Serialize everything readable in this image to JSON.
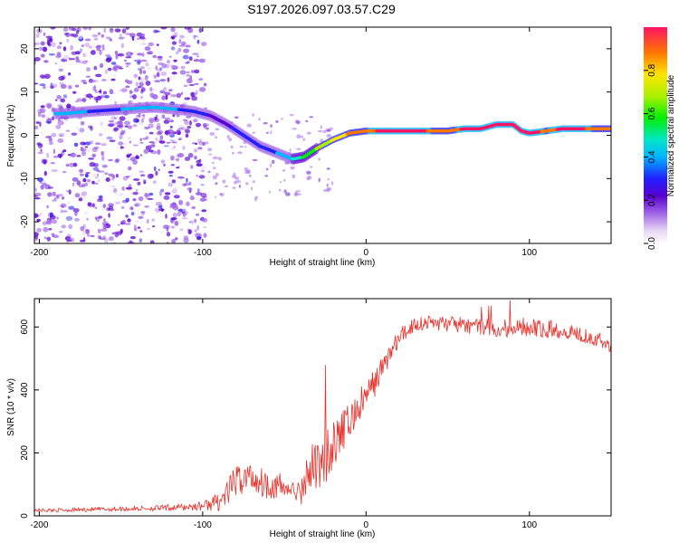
{
  "title": "S197.2026.097.03.57.C29",
  "chart_data": [
    {
      "type": "heatmap",
      "name": "spectrogram",
      "xlabel": "Height of straight line (km)",
      "ylabel": "Frequency (Hz)",
      "xlim": [
        -203,
        150
      ],
      "ylim": [
        -25,
        25
      ],
      "xticks": [
        -200,
        -100,
        0,
        100
      ],
      "xtick_labels": [
        "-200",
        "-100",
        "0",
        "100"
      ],
      "yticks": [
        -20,
        -10,
        0,
        10,
        20
      ],
      "ytick_labels": [
        "-20",
        "-10",
        "0",
        "10",
        "20"
      ],
      "ridge": {
        "x": [
          -185,
          -170,
          -150,
          -130,
          -115,
          -105,
          -95,
          -85,
          -75,
          -65,
          -55,
          -45,
          -38,
          -30,
          -20,
          -10,
          0,
          10,
          20,
          30,
          40,
          50,
          60,
          70,
          80,
          85,
          90,
          95,
          100,
          110,
          120,
          130,
          140,
          150
        ],
        "freq": [
          5,
          5.5,
          6,
          6.5,
          6,
          5.5,
          4.5,
          2.5,
          0,
          -2.5,
          -4,
          -5.5,
          -5,
          -3,
          -1,
          0.5,
          1,
          1,
          1,
          1,
          1,
          1,
          1.5,
          1.5,
          2.5,
          2.5,
          2.5,
          1,
          0.5,
          1,
          1.5,
          1.5,
          1.5,
          1.5
        ],
        "amplitude": [
          0.4,
          0.3,
          0.3,
          0.4,
          0.3,
          0.3,
          0.2,
          0.2,
          0.3,
          0.3,
          0.3,
          0.4,
          0.5,
          0.6,
          0.7,
          0.8,
          0.85,
          0.9,
          0.95,
          0.95,
          0.85,
          0.8,
          0.9,
          0.9,
          0.95,
          0.95,
          0.95,
          0.9,
          0.95,
          0.85,
          0.9,
          0.9,
          0.85,
          0.85
        ]
      }
    },
    {
      "type": "colorbar",
      "name": "amplitude-colorbar",
      "label": "Normalized spectral amplitude",
      "range": [
        0,
        1
      ],
      "ticks": [
        0,
        0.2,
        0.4,
        0.6,
        0.8
      ],
      "tick_labels": [
        "0.0",
        "0.2",
        "0.4",
        "0.6",
        "0.8"
      ]
    },
    {
      "type": "line",
      "name": "snr",
      "xlabel": "Height of straight line (km)",
      "ylabel": "SNR (10 * v/v)",
      "xlim": [
        -203,
        150
      ],
      "ylim": [
        0,
        690
      ],
      "xticks": [
        -200,
        -100,
        0,
        100
      ],
      "xtick_labels": [
        "-200",
        "-100",
        "0",
        "100"
      ],
      "yticks": [
        0,
        200,
        400,
        600
      ],
      "ytick_labels": [
        "0",
        "200",
        "400",
        "600"
      ],
      "color": "#e8302a",
      "series": [
        {
          "name": "SNR envelope",
          "x": [
            -203,
            -190,
            -170,
            -150,
            -130,
            -110,
            -100,
            -90,
            -85,
            -80,
            -75,
            -70,
            -65,
            -60,
            -55,
            -50,
            -45,
            -40,
            -35,
            -30,
            -25,
            -20,
            -15,
            -10,
            -5,
            0,
            5,
            10,
            15,
            20,
            25,
            30,
            40,
            50,
            60,
            70,
            80,
            90,
            100,
            110,
            120,
            130,
            140,
            150
          ],
          "mean": [
            18,
            18,
            20,
            22,
            24,
            28,
            32,
            45,
            70,
            110,
            120,
            125,
            110,
            100,
            95,
            90,
            80,
            70,
            140,
            170,
            190,
            230,
            260,
            300,
            340,
            380,
            420,
            470,
            520,
            560,
            590,
            610,
            615,
            610,
            605,
            600,
            595,
            600,
            600,
            595,
            590,
            580,
            565,
            540
          ],
          "spread": [
            6,
            6,
            7,
            8,
            9,
            12,
            15,
            30,
            40,
            50,
            55,
            55,
            50,
            45,
            45,
            40,
            35,
            35,
            80,
            90,
            90,
            80,
            70,
            60,
            55,
            50,
            45,
            40,
            35,
            30,
            30,
            25,
            25,
            25,
            25,
            25,
            30,
            35,
            30,
            30,
            25,
            25,
            25,
            25
          ]
        }
      ]
    }
  ]
}
